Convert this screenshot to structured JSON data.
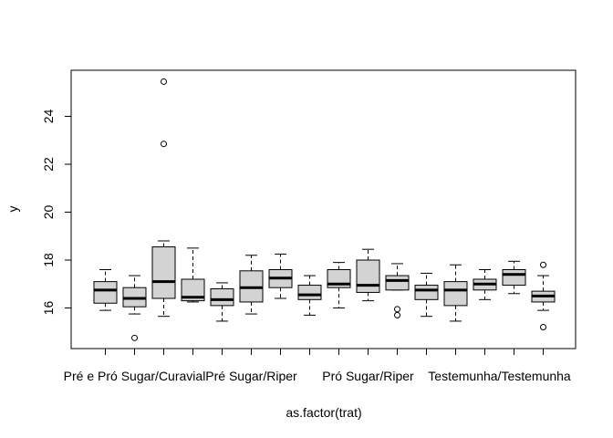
{
  "chart_data": {
    "type": "boxplot",
    "xlabel": "as.factor(trat)",
    "ylabel": "y",
    "ylim": [
      14.6,
      26.0
    ],
    "y_ticks": [
      16,
      18,
      20,
      22,
      24
    ],
    "x_tick_labels": [
      {
        "position": 2,
        "label": "Pré e Pró Sugar/Curavial"
      },
      {
        "position": 6,
        "label": "Pré Sugar/Riper"
      },
      {
        "position": 10,
        "label": "Pró Sugar/Riper"
      },
      {
        "position": 14.5,
        "label": "Testemunha/Testemunha"
      }
    ],
    "box_fill": "#d3d3d3",
    "groups": [
      {
        "index": 1,
        "whisker_low": 15.9,
        "q1": 16.2,
        "median": 16.75,
        "q3": 17.1,
        "whisker_high": 17.6,
        "outliers": []
      },
      {
        "index": 2,
        "whisker_low": 15.75,
        "q1": 16.05,
        "median": 16.4,
        "q3": 16.85,
        "whisker_high": 17.35,
        "outliers": [
          14.75
        ]
      },
      {
        "index": 3,
        "whisker_low": 15.65,
        "q1": 16.4,
        "median": 17.1,
        "q3": 18.55,
        "whisker_high": 18.8,
        "outliers": [
          22.85,
          25.45
        ]
      },
      {
        "index": 4,
        "whisker_low": 16.25,
        "q1": 16.3,
        "median": 16.45,
        "q3": 17.2,
        "whisker_high": 18.5,
        "outliers": []
      },
      {
        "index": 5,
        "whisker_low": 15.45,
        "q1": 16.1,
        "median": 16.35,
        "q3": 16.8,
        "whisker_high": 17.05,
        "outliers": []
      },
      {
        "index": 6,
        "whisker_low": 15.75,
        "q1": 16.25,
        "median": 16.85,
        "q3": 17.55,
        "whisker_high": 18.2,
        "outliers": []
      },
      {
        "index": 7,
        "whisker_low": 16.4,
        "q1": 16.85,
        "median": 17.25,
        "q3": 17.6,
        "whisker_high": 18.25,
        "outliers": []
      },
      {
        "index": 8,
        "whisker_low": 15.7,
        "q1": 16.35,
        "median": 16.55,
        "q3": 16.95,
        "whisker_high": 17.35,
        "outliers": []
      },
      {
        "index": 9,
        "whisker_low": 16.0,
        "q1": 16.85,
        "median": 17.0,
        "q3": 17.6,
        "whisker_high": 17.9,
        "outliers": []
      },
      {
        "index": 10,
        "whisker_low": 16.3,
        "q1": 16.65,
        "median": 16.95,
        "q3": 18.0,
        "whisker_high": 18.45,
        "outliers": []
      },
      {
        "index": 11,
        "whisker_low": 16.75,
        "q1": 16.75,
        "median": 17.15,
        "q3": 17.35,
        "whisker_high": 17.85,
        "outliers": [
          15.95,
          15.7
        ]
      },
      {
        "index": 12,
        "whisker_low": 15.65,
        "q1": 16.35,
        "median": 16.75,
        "q3": 16.95,
        "whisker_high": 17.45,
        "outliers": []
      },
      {
        "index": 13,
        "whisker_low": 15.45,
        "q1": 16.1,
        "median": 16.75,
        "q3": 17.1,
        "whisker_high": 17.8,
        "outliers": []
      },
      {
        "index": 14,
        "whisker_low": 16.35,
        "q1": 16.75,
        "median": 17.0,
        "q3": 17.2,
        "whisker_high": 17.6,
        "outliers": []
      },
      {
        "index": 15,
        "whisker_low": 16.6,
        "q1": 16.95,
        "median": 17.4,
        "q3": 17.6,
        "whisker_high": 17.95,
        "outliers": []
      },
      {
        "index": 16,
        "whisker_low": 15.9,
        "q1": 16.25,
        "median": 16.5,
        "q3": 16.7,
        "whisker_high": 17.35,
        "outliers": [
          17.8,
          15.2
        ]
      }
    ]
  }
}
